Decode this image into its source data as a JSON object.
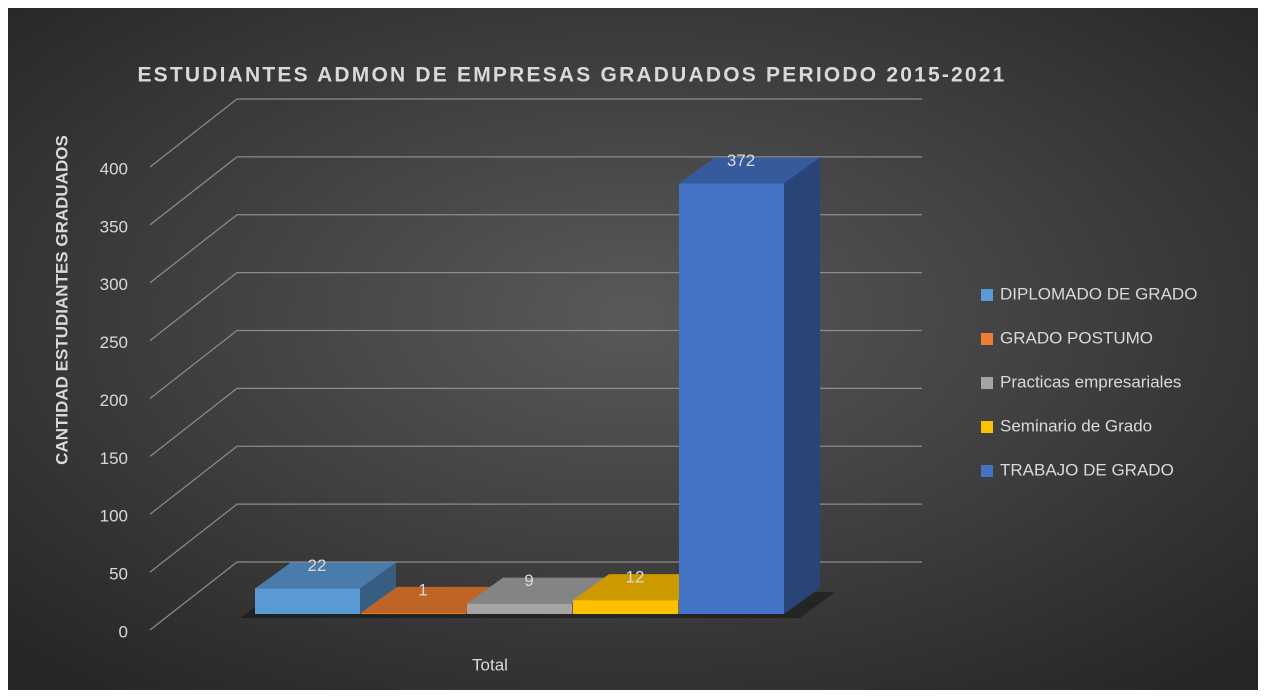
{
  "chart_data": {
    "type": "bar3d",
    "title": "ESTUDIANTES ADMON DE EMPRESAS GRADUADOS PERIODO 2015-2021",
    "y_label": "CANTIDAD ESTUDIANTES GRADUADOS",
    "categories": [
      "Total"
    ],
    "series": [
      {
        "name": "DIPLOMADO DE GRADO",
        "color": "#5b9bd5",
        "values": [
          22
        ]
      },
      {
        "name": "GRADO POSTUMO",
        "color": "#ed7d31",
        "values": [
          1
        ]
      },
      {
        "name": "Practicas empresariales",
        "color": "#a5a5a5",
        "values": [
          9
        ]
      },
      {
        "name": "Seminario de Grado",
        "color": "#ffc000",
        "values": [
          12
        ]
      },
      {
        "name": "TRABAJO DE GRADO",
        "color": "#4472c4",
        "values": [
          372
        ]
      }
    ],
    "ylim": [
      0,
      400
    ],
    "yticks": [
      0,
      50,
      100,
      150,
      200,
      250,
      300,
      350,
      400
    ],
    "grid": true,
    "legend": "right"
  }
}
